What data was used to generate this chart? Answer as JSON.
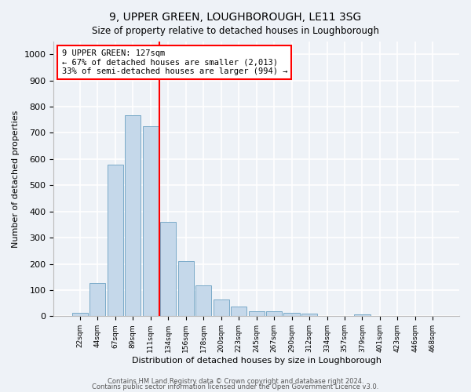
{
  "title": "9, UPPER GREEN, LOUGHBOROUGH, LE11 3SG",
  "subtitle": "Size of property relative to detached houses in Loughborough",
  "xlabel": "Distribution of detached houses by size in Loughborough",
  "ylabel": "Number of detached properties",
  "bar_color": "#c5d8ea",
  "bar_edge_color": "#7aaac8",
  "categories": [
    "22sqm",
    "44sqm",
    "67sqm",
    "89sqm",
    "111sqm",
    "134sqm",
    "156sqm",
    "178sqm",
    "200sqm",
    "223sqm",
    "245sqm",
    "267sqm",
    "290sqm",
    "312sqm",
    "334sqm",
    "357sqm",
    "379sqm",
    "401sqm",
    "423sqm",
    "446sqm",
    "468sqm"
  ],
  "values": [
    12,
    127,
    578,
    768,
    725,
    360,
    210,
    118,
    65,
    38,
    20,
    20,
    12,
    10,
    0,
    0,
    8,
    0,
    0,
    0,
    0
  ],
  "vline_x": 4.5,
  "vline_color": "red",
  "annotation_text": "9 UPPER GREEN: 127sqm\n← 67% of detached houses are smaller (2,013)\n33% of semi-detached houses are larger (994) →",
  "ylim": [
    0,
    1050
  ],
  "yticks": [
    0,
    100,
    200,
    300,
    400,
    500,
    600,
    700,
    800,
    900,
    1000
  ],
  "footer1": "Contains HM Land Registry data © Crown copyright and database right 2024.",
  "footer2": "Contains public sector information licensed under the Open Government Licence v3.0.",
  "background_color": "#eef2f7",
  "plot_background": "#eef2f7",
  "grid_color": "#ffffff"
}
